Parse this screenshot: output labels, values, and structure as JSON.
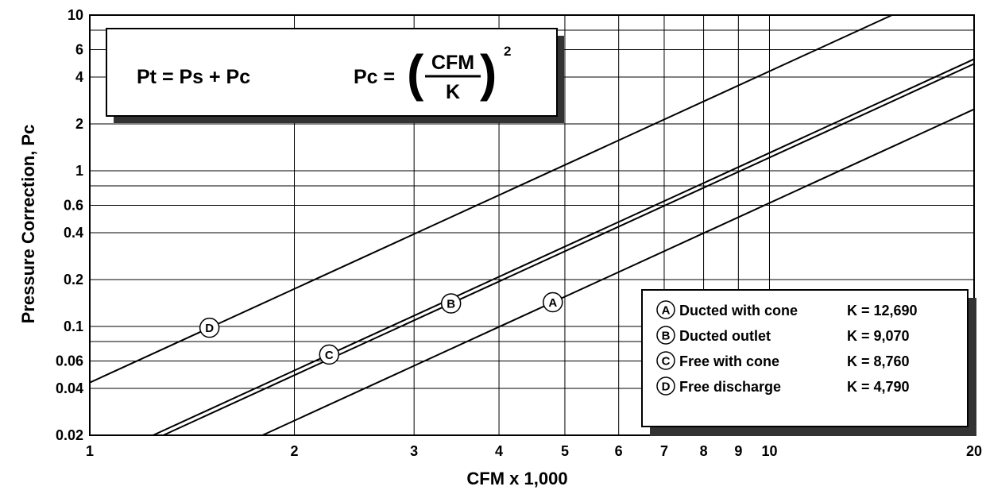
{
  "chart_data": {
    "type": "line",
    "xscale": "log",
    "yscale": "log",
    "xlabel": "CFM x 1,000",
    "ylabel": "Pressure Correction,  Pc",
    "xlim": [
      1,
      20
    ],
    "ylim": [
      0.02,
      10
    ],
    "grid": true,
    "x_ticks": [
      1,
      2,
      3,
      4,
      5,
      6,
      7,
      8,
      9,
      10,
      20
    ],
    "x_tick_labels": [
      "1",
      "2",
      "3",
      "4",
      "5",
      "6",
      "7",
      "8",
      "9",
      "10",
      "20"
    ],
    "y_ticks": [
      0.02,
      0.04,
      0.06,
      0.1,
      0.2,
      0.4,
      0.6,
      1,
      2,
      4,
      6,
      10
    ],
    "y_tick_labels": [
      "0.02",
      "0.04",
      "0.06",
      "0.1",
      "0.2",
      "0.4",
      "0.6",
      "1",
      "2",
      "4",
      "6",
      "10"
    ],
    "y_extra_gridlines": [
      0.08,
      0.8,
      8
    ],
    "formula": {
      "left": "Pt = Ps + Pc",
      "right_lhs": "Pc =",
      "numerator": "CFM",
      "denominator": "K",
      "exponent": "2"
    },
    "series": [
      {
        "name": "Ducted with cone",
        "letter": "A",
        "k_label": "K = 12,690",
        "K": 12690,
        "marker_x": 4.8,
        "color": "#000000"
      },
      {
        "name": "Ducted outlet",
        "letter": "B",
        "k_label": "K = 9,070",
        "K": 9070,
        "marker_x": 3.4,
        "color": "#000000"
      },
      {
        "name": "Free with cone",
        "letter": "C",
        "k_label": "K = 8,760",
        "K": 8760,
        "marker_x": 2.25,
        "color": "#000000"
      },
      {
        "name": "Free discharge",
        "letter": "D",
        "k_label": "K = 4,790",
        "K": 4790,
        "marker_x": 1.5,
        "color": "#000000"
      }
    ]
  }
}
